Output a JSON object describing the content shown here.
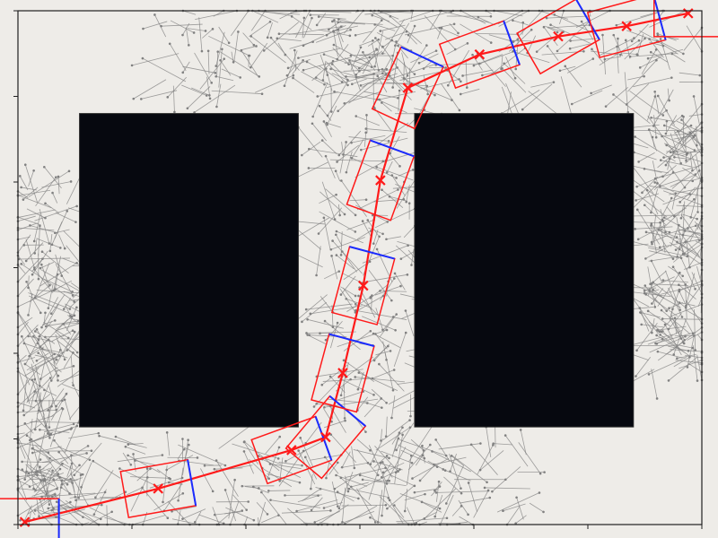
{
  "plot": {
    "background_color": "#eeece8",
    "frame_color": "#202020",
    "tree_color": "#808080",
    "path_color": "#ff1a1a",
    "heading_edge_color": "#1a2cff",
    "obstacle_color": "#06080f"
  },
  "chart_data": {
    "type": "diagram",
    "title": "",
    "xlabel": "",
    "ylabel": "",
    "xlim": [
      0,
      100
    ],
    "ylim": [
      0,
      100
    ],
    "obstacles": [
      {
        "x": [
          9,
          41
        ],
        "y": [
          19,
          80
        ]
      },
      {
        "x": [
          58,
          90
        ],
        "y": [
          19,
          80
        ]
      }
    ],
    "path_waypoints": [
      {
        "x": 1,
        "y": 0.5,
        "heading_deg": 0
      },
      {
        "x": 20.5,
        "y": 7,
        "heading_deg": 10
      },
      {
        "x": 40,
        "y": 14.5,
        "heading_deg": 20
      },
      {
        "x": 45,
        "y": 17,
        "heading_deg": 50
      },
      {
        "x": 47.5,
        "y": 29.5,
        "heading_deg": 75
      },
      {
        "x": 50.5,
        "y": 46.5,
        "heading_deg": 75
      },
      {
        "x": 53,
        "y": 67,
        "heading_deg": 70
      },
      {
        "x": 57,
        "y": 85,
        "heading_deg": 65
      },
      {
        "x": 67.5,
        "y": 91.5,
        "heading_deg": 20
      },
      {
        "x": 79,
        "y": 95,
        "heading_deg": 30
      },
      {
        "x": 89,
        "y": 97,
        "heading_deg": 15
      },
      {
        "x": 98,
        "y": 99.5,
        "heading_deg": 0
      }
    ],
    "tree_regions": [
      {
        "x": [
          1,
          8
        ],
        "y": [
          2,
          66
        ]
      },
      {
        "x": [
          1,
          75
        ],
        "y": [
          0,
          16
        ]
      },
      {
        "x": [
          44,
          58
        ],
        "y": [
          14,
          100
        ]
      },
      {
        "x": [
          21,
          98
        ],
        "y": [
          84,
          100
        ]
      },
      {
        "x": [
          92,
          100
        ],
        "y": [
          30,
          80
        ]
      }
    ]
  }
}
